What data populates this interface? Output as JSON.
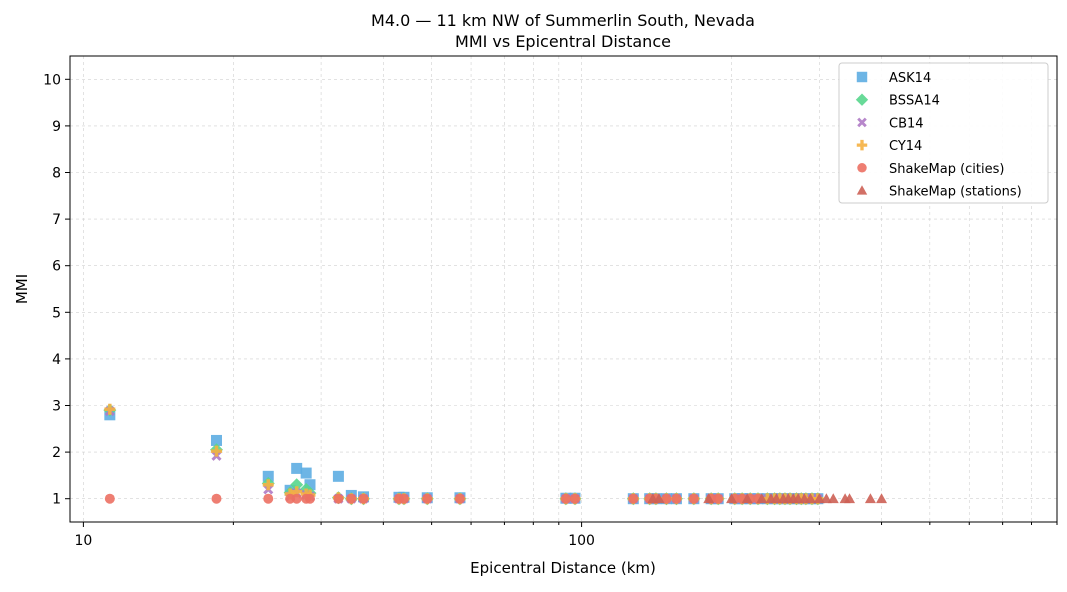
{
  "chart_data": {
    "type": "scatter",
    "title": "M4.0 — 11 km NW of Summerlin South, Nevada",
    "subtitle": "MMI vs Epicentral Distance",
    "xlabel": "Epicentral Distance (km)",
    "ylabel": "MMI",
    "x_scale": "log",
    "xlim": [
      9.4,
      900
    ],
    "ylim": [
      0.5,
      10.5
    ],
    "x_major_ticks": [
      10,
      100
    ],
    "x_major_tick_labels": [
      "10",
      "100"
    ],
    "y_ticks": [
      1,
      2,
      3,
      4,
      5,
      6,
      7,
      8,
      9,
      10
    ],
    "y_tick_labels": [
      "1",
      "2",
      "3",
      "4",
      "5",
      "6",
      "7",
      "8",
      "9",
      "10"
    ],
    "grid": true,
    "legend_position": "top-right",
    "series": [
      {
        "name": "ASK14",
        "marker": "square",
        "color": "#5DADE2",
        "points": [
          [
            11.3,
            2.8
          ],
          [
            18.5,
            2.25
          ],
          [
            23.5,
            1.48
          ],
          [
            26,
            1.18
          ],
          [
            26.8,
            1.65
          ],
          [
            28,
            1.55
          ],
          [
            28.5,
            1.3
          ],
          [
            32.5,
            1.48
          ],
          [
            34.5,
            1.07
          ],
          [
            36.5,
            1.04
          ],
          [
            43,
            1.03
          ],
          [
            44,
            1.03
          ],
          [
            49,
            1.02
          ],
          [
            57,
            1.02
          ],
          [
            93,
            1.01
          ],
          [
            97,
            1.01
          ],
          [
            127,
            1.0
          ],
          [
            137,
            1.0
          ],
          [
            141,
            1.0
          ],
          [
            148,
            1.0
          ],
          [
            155,
            1.0
          ],
          [
            168,
            1.0
          ],
          [
            182,
            1.0
          ],
          [
            188,
            1.0
          ],
          [
            203,
            1.0
          ],
          [
            210,
            1.0
          ],
          [
            218,
            1.0
          ],
          [
            226,
            1.0
          ],
          [
            236,
            1.0
          ],
          [
            244,
            1.0
          ],
          [
            250,
            1.0
          ],
          [
            256,
            1.0
          ],
          [
            262,
            1.0
          ],
          [
            270,
            1.0
          ],
          [
            276,
            1.0
          ],
          [
            282,
            1.0
          ],
          [
            290,
            1.0
          ],
          [
            298,
            1.0
          ]
        ]
      },
      {
        "name": "BSSA14",
        "marker": "diamond",
        "color": "#58D68D",
        "points": [
          [
            11.3,
            2.9
          ],
          [
            18.5,
            2.05
          ],
          [
            23.5,
            1.33
          ],
          [
            26,
            1.13
          ],
          [
            26.8,
            1.3
          ],
          [
            28,
            1.2
          ],
          [
            28.5,
            1.12
          ],
          [
            32.5,
            1.02
          ],
          [
            34.5,
            1.0
          ],
          [
            36.5,
            1.0
          ],
          [
            43,
            1.0
          ],
          [
            44,
            1.0
          ],
          [
            49,
            1.0
          ],
          [
            57,
            1.0
          ],
          [
            93,
            1.0
          ],
          [
            97,
            1.0
          ],
          [
            127,
            1.0
          ],
          [
            137,
            1.0
          ],
          [
            141,
            1.0
          ],
          [
            148,
            1.0
          ],
          [
            155,
            1.0
          ],
          [
            168,
            1.0
          ],
          [
            182,
            1.0
          ],
          [
            188,
            1.0
          ],
          [
            203,
            1.0
          ],
          [
            210,
            1.0
          ],
          [
            218,
            1.0
          ],
          [
            226,
            1.0
          ],
          [
            236,
            1.0
          ],
          [
            244,
            1.0
          ],
          [
            250,
            1.0
          ],
          [
            256,
            1.0
          ],
          [
            262,
            1.0
          ],
          [
            270,
            1.0
          ],
          [
            276,
            1.0
          ],
          [
            282,
            1.0
          ],
          [
            290,
            1.0
          ],
          [
            298,
            1.0
          ]
        ]
      },
      {
        "name": "CB14",
        "marker": "x",
        "color": "#AF7AC5",
        "points": [
          [
            11.3,
            2.88
          ],
          [
            18.5,
            1.92
          ],
          [
            23.5,
            1.2
          ],
          [
            26,
            1.05
          ],
          [
            26.8,
            1.12
          ],
          [
            28,
            1.08
          ],
          [
            28.5,
            1.05
          ],
          [
            32.5,
            1.0
          ],
          [
            34.5,
            1.0
          ],
          [
            36.5,
            1.0
          ],
          [
            43,
            1.0
          ],
          [
            44,
            1.0
          ],
          [
            49,
            1.0
          ],
          [
            57,
            1.0
          ],
          [
            93,
            1.0
          ],
          [
            97,
            1.0
          ],
          [
            127,
            1.0
          ],
          [
            137,
            1.0
          ],
          [
            141,
            1.0
          ],
          [
            148,
            1.0
          ],
          [
            155,
            1.0
          ],
          [
            168,
            1.0
          ],
          [
            182,
            1.0
          ],
          [
            188,
            1.0
          ],
          [
            203,
            1.0
          ],
          [
            210,
            1.0
          ],
          [
            218,
            1.0
          ],
          [
            226,
            1.0
          ],
          [
            236,
            1.0
          ],
          [
            244,
            1.0
          ],
          [
            250,
            1.0
          ],
          [
            256,
            1.0
          ],
          [
            262,
            1.0
          ],
          [
            270,
            1.0
          ],
          [
            276,
            1.0
          ],
          [
            282,
            1.0
          ],
          [
            290,
            1.0
          ],
          [
            298,
            1.0
          ]
        ]
      },
      {
        "name": "CY14",
        "marker": "plus",
        "color": "#F5B041",
        "points": [
          [
            11.3,
            2.92
          ],
          [
            18.5,
            2.02
          ],
          [
            23.5,
            1.3
          ],
          [
            26,
            1.1
          ],
          [
            26.8,
            1.15
          ],
          [
            28,
            1.1
          ],
          [
            28.5,
            1.08
          ],
          [
            32.5,
            1.02
          ],
          [
            34.5,
            1.0
          ],
          [
            36.5,
            1.0
          ],
          [
            43,
            1.0
          ],
          [
            44,
            1.0
          ],
          [
            49,
            1.0
          ],
          [
            57,
            1.0
          ],
          [
            93,
            1.0
          ],
          [
            97,
            1.0
          ],
          [
            127,
            1.0
          ],
          [
            137,
            1.0
          ],
          [
            141,
            1.0
          ],
          [
            148,
            1.0
          ],
          [
            155,
            1.0
          ],
          [
            168,
            1.0
          ],
          [
            182,
            1.0
          ],
          [
            188,
            1.0
          ],
          [
            203,
            1.0
          ],
          [
            210,
            1.0
          ],
          [
            218,
            1.0
          ],
          [
            226,
            1.0
          ],
          [
            236,
            1.0
          ],
          [
            244,
            1.0
          ],
          [
            250,
            1.0
          ],
          [
            256,
            1.0
          ],
          [
            262,
            1.0
          ],
          [
            270,
            1.0
          ],
          [
            276,
            1.0
          ],
          [
            282,
            1.0
          ],
          [
            290,
            1.0
          ],
          [
            298,
            1.0
          ]
        ]
      },
      {
        "name": "ShakeMap (cities)",
        "marker": "circle",
        "color": "#EC7063",
        "points": [
          [
            11.3,
            1.0
          ],
          [
            18.5,
            1.0
          ],
          [
            23.5,
            1.0
          ],
          [
            26,
            1.0
          ],
          [
            26.8,
            1.0
          ],
          [
            28,
            1.0
          ],
          [
            28.5,
            1.0
          ],
          [
            32.5,
            1.0
          ],
          [
            34.5,
            1.0
          ],
          [
            36.5,
            1.0
          ],
          [
            43,
            1.0
          ],
          [
            44,
            1.0
          ],
          [
            49,
            1.0
          ],
          [
            57,
            1.0
          ],
          [
            93,
            1.0
          ],
          [
            97,
            1.0
          ],
          [
            127,
            1.0
          ],
          [
            137,
            1.0
          ],
          [
            141,
            1.0
          ],
          [
            148,
            1.0
          ],
          [
            155,
            1.0
          ],
          [
            168,
            1.0
          ],
          [
            182,
            1.0
          ],
          [
            188,
            1.0
          ],
          [
            203,
            1.0
          ],
          [
            210,
            1.0
          ],
          [
            218,
            1.0
          ],
          [
            226,
            1.0
          ]
        ]
      },
      {
        "name": "ShakeMap (stations)",
        "marker": "triangle",
        "color": "#CD6155",
        "points": [
          [
            139,
            1.0
          ],
          [
            143,
            1.0
          ],
          [
            180,
            1.0
          ],
          [
            200,
            1.0
          ],
          [
            215,
            1.0
          ],
          [
            230,
            1.0
          ],
          [
            240,
            1.0
          ],
          [
            246,
            1.0
          ],
          [
            254,
            1.0
          ],
          [
            260,
            1.0
          ],
          [
            266,
            1.0
          ],
          [
            272,
            1.0
          ],
          [
            280,
            1.0
          ],
          [
            288,
            1.0
          ],
          [
            300,
            1.0
          ],
          [
            310,
            1.0
          ],
          [
            320,
            1.0
          ],
          [
            338,
            1.0
          ],
          [
            345,
            1.0
          ],
          [
            380,
            1.0
          ],
          [
            400,
            1.0
          ]
        ]
      }
    ]
  }
}
